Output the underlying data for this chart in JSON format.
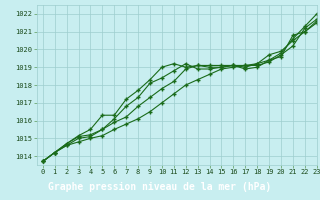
{
  "xlabel": "Graphe pression niveau de la mer (hPa)",
  "xlim": [
    -0.5,
    23
  ],
  "ylim": [
    1013.5,
    1022.5
  ],
  "yticks": [
    1014,
    1015,
    1016,
    1017,
    1018,
    1019,
    1020,
    1021,
    1022
  ],
  "xticks": [
    0,
    1,
    2,
    3,
    4,
    5,
    6,
    7,
    8,
    9,
    10,
    11,
    12,
    13,
    14,
    15,
    16,
    17,
    18,
    19,
    20,
    21,
    22,
    23
  ],
  "bg_color": "#c8eef0",
  "grid_color": "#9ecece",
  "line_color": "#1a6b1a",
  "label_bg": "#1a6b1a",
  "label_fg": "#ffffff",
  "line1": [
    1013.7,
    1014.2,
    1014.6,
    1014.8,
    1015.0,
    1015.15,
    1015.5,
    1015.8,
    1016.1,
    1016.5,
    1017.0,
    1017.5,
    1018.0,
    1018.3,
    1018.6,
    1018.9,
    1019.0,
    1019.1,
    1019.1,
    1019.3,
    1019.7,
    1020.2,
    1021.2,
    1021.7
  ],
  "line2": [
    1013.7,
    1014.2,
    1014.6,
    1015.0,
    1015.1,
    1015.5,
    1015.9,
    1016.2,
    1016.8,
    1017.3,
    1017.8,
    1018.2,
    1018.9,
    1019.1,
    1019.0,
    1019.0,
    1019.1,
    1019.1,
    1019.2,
    1019.4,
    1019.8,
    1020.6,
    1021.3,
    1022.0
  ],
  "line3": [
    1013.7,
    1014.2,
    1014.7,
    1015.1,
    1015.2,
    1015.5,
    1016.1,
    1016.8,
    1017.3,
    1018.1,
    1018.4,
    1018.8,
    1019.2,
    1018.9,
    1018.9,
    1019.0,
    1019.1,
    1018.9,
    1019.0,
    1019.4,
    1019.6,
    1020.8,
    1021.0,
    1021.6
  ],
  "line4": [
    1013.7,
    1014.2,
    1014.7,
    1015.15,
    1015.5,
    1016.3,
    1016.3,
    1017.2,
    1017.7,
    1018.3,
    1019.0,
    1019.2,
    1019.0,
    1019.1,
    1019.1,
    1019.1,
    1019.1,
    1019.0,
    1019.2,
    1019.7,
    1019.9,
    1020.5,
    1021.0,
    1021.5
  ]
}
